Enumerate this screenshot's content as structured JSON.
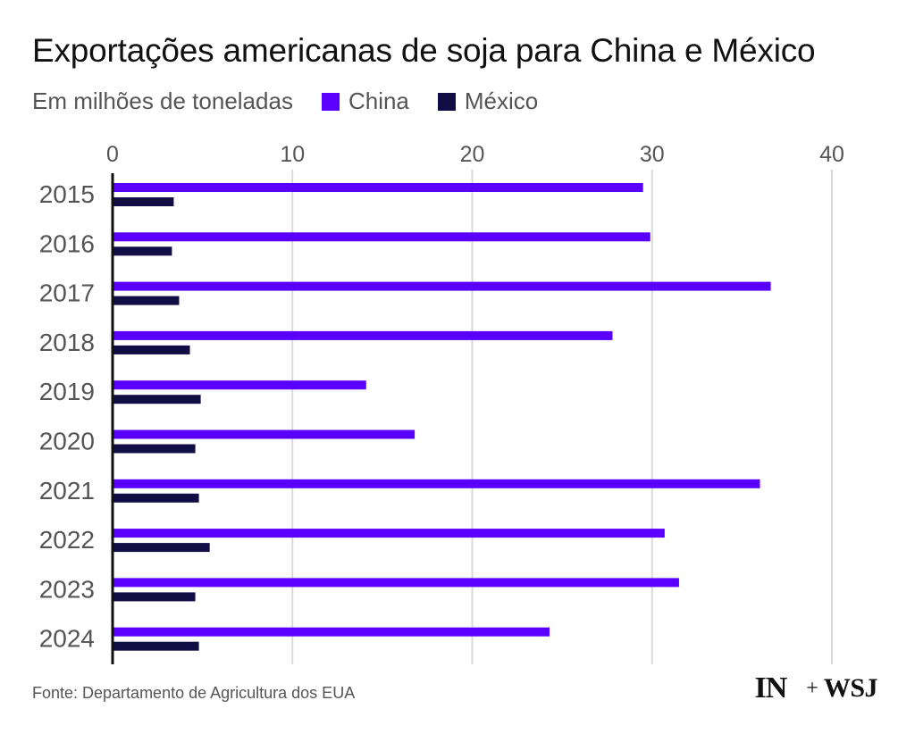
{
  "title": "Exportações americanas de soja para China e México",
  "subtitle": "Em milhões de toneladas",
  "legend": [
    {
      "label": "China",
      "color": "#5a00ff"
    },
    {
      "label": "México",
      "color": "#110d45"
    }
  ],
  "source": "Fonte: Departamento de Agricultura dos EUA",
  "logo": {
    "left": "IN",
    "plus": "+",
    "right": "WSJ"
  },
  "chart_data": {
    "type": "bar",
    "orientation": "horizontal",
    "categories": [
      "2015",
      "2016",
      "2017",
      "2018",
      "2019",
      "2020",
      "2021",
      "2022",
      "2023",
      "2024"
    ],
    "series": [
      {
        "name": "China",
        "color": "#5a00ff",
        "values": [
          29.5,
          29.9,
          36.6,
          27.8,
          14.1,
          16.8,
          36.0,
          30.7,
          31.5,
          24.3
        ]
      },
      {
        "name": "México",
        "color": "#110d45",
        "values": [
          3.4,
          3.3,
          3.7,
          4.3,
          4.9,
          4.6,
          4.8,
          5.4,
          4.6,
          4.8
        ]
      }
    ],
    "xlim": [
      0,
      40
    ],
    "xticks": [
      0,
      10,
      20,
      30,
      40
    ],
    "x_axis_position": "top",
    "grid": true,
    "legend_position": "top-left"
  }
}
